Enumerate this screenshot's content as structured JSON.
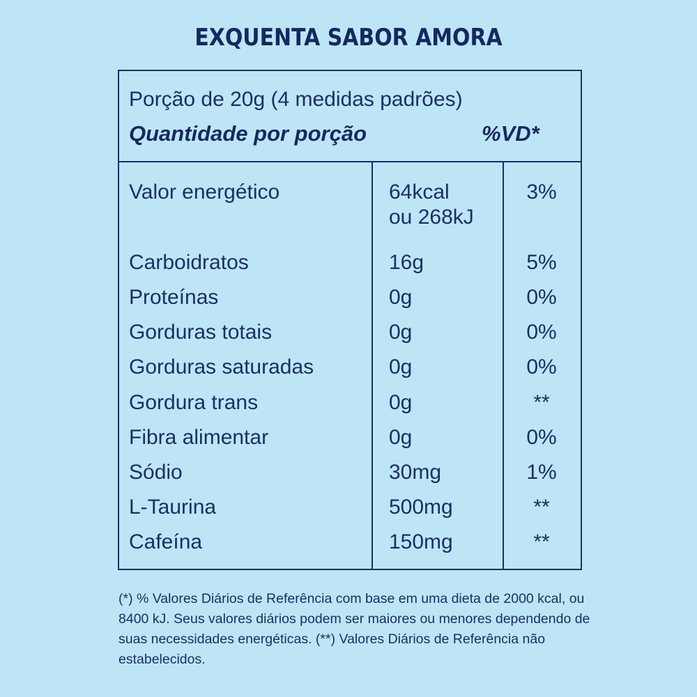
{
  "title": "EXQUENTA SABOR AMORA",
  "header": {
    "serving": "Porção de 20g (4 medidas padrões)",
    "quantity_label": "Quantidade por porção",
    "dv_label": "%VD*"
  },
  "rows": [
    {
      "name": "Valor energético",
      "amount_line1": "64kcal",
      "amount_line2": "ou 268kJ",
      "dv": "3%"
    },
    {
      "name": "Carboidratos",
      "amount": "16g",
      "dv": "5%"
    },
    {
      "name": "Proteínas",
      "amount": "0g",
      "dv": "0%"
    },
    {
      "name": "Gorduras totais",
      "amount": "0g",
      "dv": "0%"
    },
    {
      "name": "Gorduras saturadas",
      "amount": "0g",
      "dv": "0%"
    },
    {
      "name": "Gordura trans",
      "amount": "0g",
      "dv": "**"
    },
    {
      "name": "Fibra alimentar",
      "amount": "0g",
      "dv": "0%"
    },
    {
      "name": "Sódio",
      "amount": "30mg",
      "dv": "1%"
    },
    {
      "name": "L-Taurina",
      "amount": "500mg",
      "dv": "**"
    },
    {
      "name": "Cafeína",
      "amount": "150mg",
      "dv": "**"
    }
  ],
  "footnote": "(*) % Valores Diários de Referência com base em uma dieta de 2000 kcal, ou 8400 kJ. Seus valores diários podem ser maiores ou menores dependendo de suas necessidades energéticas. (**) Valores Diários de Referência não estabelecidos.",
  "colors": {
    "background": "#bde5f6",
    "text": "#1b2f63"
  }
}
